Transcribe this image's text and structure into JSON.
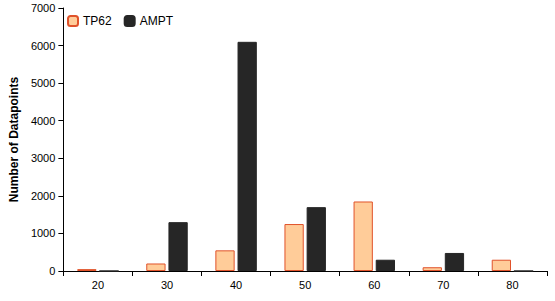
{
  "chart_data": {
    "type": "bar",
    "y_label": "Number of Datapoints",
    "categories": [
      "20",
      "30",
      "40",
      "50",
      "60",
      "70",
      "80"
    ],
    "series": [
      {
        "name": "TP62",
        "color": "#ffcc99",
        "values": [
          50,
          200,
          550,
          1250,
          1850,
          100,
          300
        ]
      },
      {
        "name": "AMPT",
        "color": "#262626",
        "values": [
          0,
          1300,
          6100,
          1700,
          300,
          480,
          0
        ]
      }
    ],
    "ylim": [
      0,
      7000
    ],
    "yticks": [
      0,
      1000,
      2000,
      3000,
      4000,
      5000,
      6000,
      7000
    ],
    "grid": false,
    "legend": "top-left"
  }
}
